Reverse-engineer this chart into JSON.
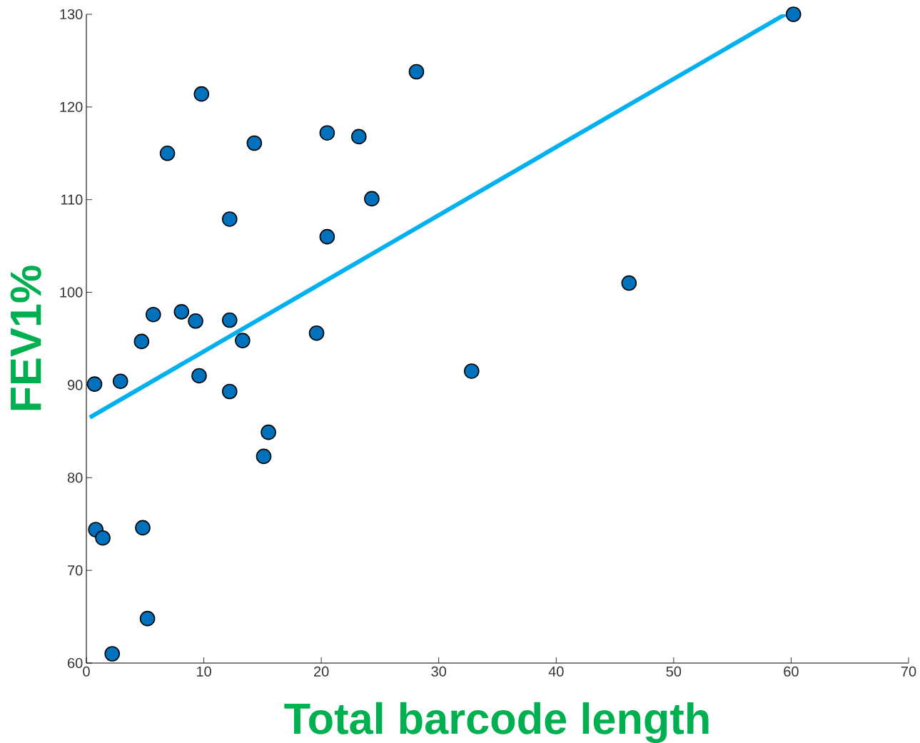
{
  "chart_data": {
    "type": "scatter",
    "xlabel": "Total barcode length",
    "ylabel": "FEV1%",
    "xlim": [
      0,
      70
    ],
    "ylim": [
      60,
      130
    ],
    "xticks": [
      0,
      10,
      20,
      30,
      40,
      50,
      60,
      70
    ],
    "yticks": [
      60,
      70,
      80,
      90,
      100,
      110,
      120,
      130
    ],
    "grid": false,
    "marker": "circle",
    "series": [
      {
        "color": "#0072bd",
        "x": [
          0.7,
          0.8,
          1.4,
          2.2,
          2.9,
          4.7,
          4.8,
          5.2,
          5.7,
          6.9,
          8.1,
          9.3,
          9.6,
          9.8,
          12.2,
          12.2,
          12.2,
          13.3,
          14.3,
          15.1,
          15.5,
          19.6,
          20.5,
          20.5,
          23.2,
          24.3,
          28.1,
          32.8,
          46.2,
          60.2
        ],
        "values": [
          90.1,
          74.4,
          73.5,
          61.0,
          90.4,
          94.7,
          74.6,
          64.8,
          97.6,
          115.0,
          97.9,
          96.9,
          91.0,
          121.4,
          107.9,
          97.0,
          89.3,
          94.8,
          116.1,
          82.3,
          84.9,
          95.6,
          117.2,
          106.0,
          116.8,
          110.1,
          123.8,
          91.5,
          101.0,
          130.0
        ]
      },
      {
        "type": "line",
        "marker": "none",
        "color": "#00b0f0",
        "x": [
          0.3,
          59.5
        ],
        "values": [
          86.5,
          130.0
        ]
      }
    ]
  }
}
